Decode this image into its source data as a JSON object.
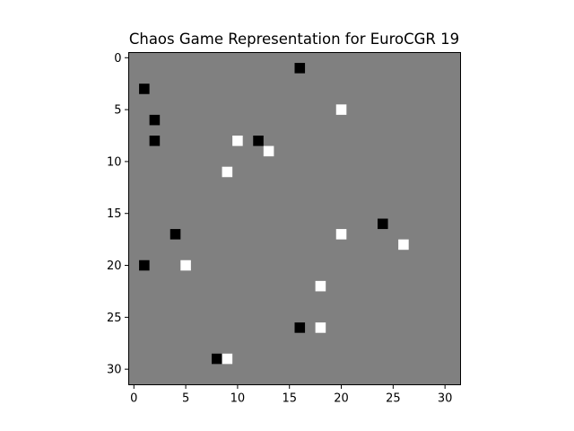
{
  "chart_data": {
    "type": "heatmap",
    "title": "Chaos Game Representation for EuroCGR 19",
    "xlabel": "",
    "ylabel": "",
    "grid_size": 32,
    "xlim": [
      -0.5,
      31.5
    ],
    "ylim": [
      31.5,
      -0.5
    ],
    "x_ticks": [
      0,
      5,
      10,
      15,
      20,
      25,
      30
    ],
    "y_ticks": [
      0,
      5,
      10,
      15,
      20,
      25,
      30
    ],
    "x_tick_labels": [
      "0",
      "5",
      "10",
      "15",
      "20",
      "25",
      "30"
    ],
    "y_tick_labels": [
      "0",
      "5",
      "10",
      "15",
      "20",
      "25",
      "30"
    ],
    "grid": false,
    "colors": {
      "background_cell": "#808080",
      "low_cell": "#000000",
      "high_cell": "#ffffff"
    },
    "background_value": 0,
    "cells": [
      {
        "col": 16,
        "row": 1,
        "value": -1
      },
      {
        "col": 1,
        "row": 3,
        "value": -1
      },
      {
        "col": 20,
        "row": 5,
        "value": 1
      },
      {
        "col": 2,
        "row": 6,
        "value": -1
      },
      {
        "col": 2,
        "row": 8,
        "value": -1
      },
      {
        "col": 10,
        "row": 8,
        "value": 1
      },
      {
        "col": 12,
        "row": 8,
        "value": -1
      },
      {
        "col": 13,
        "row": 9,
        "value": 1
      },
      {
        "col": 9,
        "row": 11,
        "value": 1
      },
      {
        "col": 24,
        "row": 16,
        "value": -1
      },
      {
        "col": 4,
        "row": 17,
        "value": -1
      },
      {
        "col": 20,
        "row": 17,
        "value": 1
      },
      {
        "col": 26,
        "row": 18,
        "value": 1
      },
      {
        "col": 1,
        "row": 20,
        "value": -1
      },
      {
        "col": 5,
        "row": 20,
        "value": 1
      },
      {
        "col": 18,
        "row": 22,
        "value": 1
      },
      {
        "col": 16,
        "row": 26,
        "value": -1
      },
      {
        "col": 18,
        "row": 26,
        "value": 1
      },
      {
        "col": 8,
        "row": 29,
        "value": -1
      },
      {
        "col": 9,
        "row": 29,
        "value": 1
      }
    ]
  }
}
